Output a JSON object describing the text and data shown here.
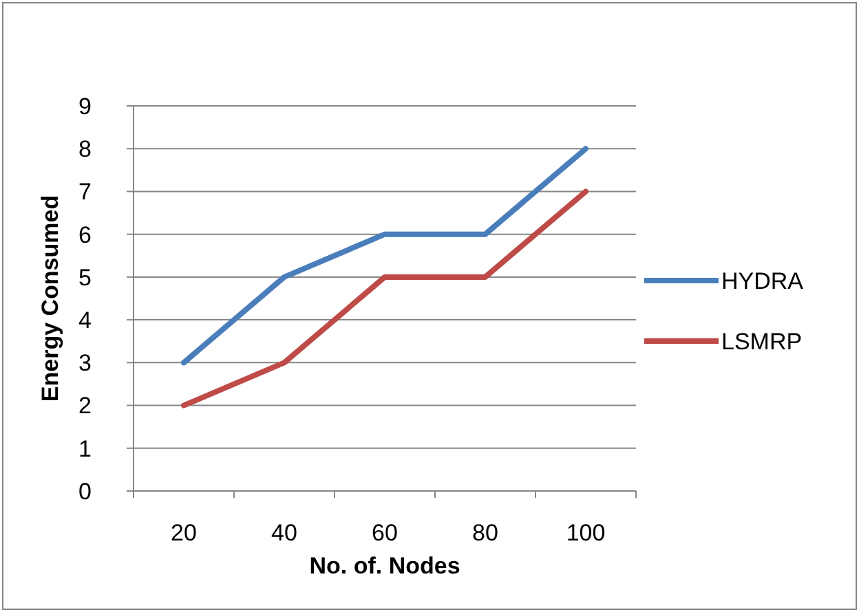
{
  "chart_data": {
    "type": "line",
    "xlabel": "No. of. Nodes",
    "ylabel": "Energy Consumed",
    "categories": [
      "20",
      "40",
      "60",
      "80",
      "100"
    ],
    "series": [
      {
        "name": "HYDRA",
        "color": "#4a7ebb",
        "values": [
          3,
          5,
          6,
          6,
          8
        ]
      },
      {
        "name": "LSMRP",
        "color": "#be4b48",
        "values": [
          2,
          3,
          5,
          5,
          7
        ]
      }
    ],
    "ylim": [
      0,
      9
    ],
    "yticks": [
      0,
      1,
      2,
      3,
      4,
      5,
      6,
      7,
      8,
      9
    ],
    "grid": "y",
    "legend": "right",
    "marker": "none",
    "line_style": "solid"
  }
}
